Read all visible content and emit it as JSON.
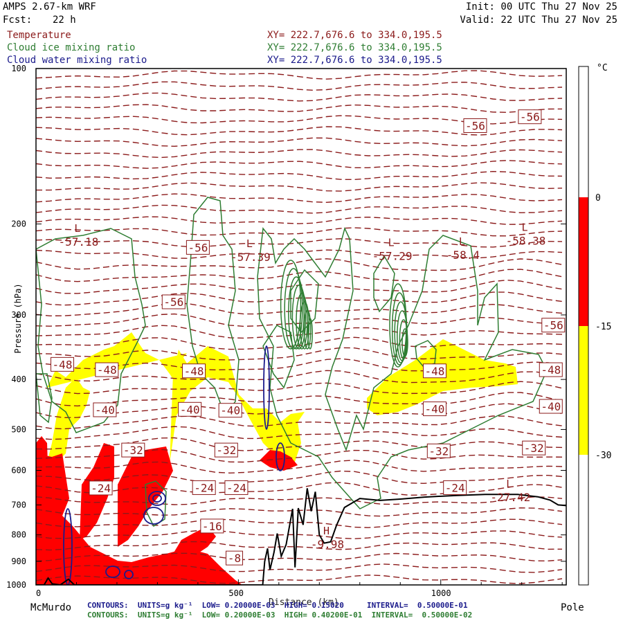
{
  "header": {
    "model": "AMPS 2.67-km WRF",
    "init": "Init: 00 UTC Thu 27 Nov 25",
    "fcst_label": "Fcst:",
    "fcst_value": "22 h",
    "valid": "Valid: 22 UTC Thu 27 Nov 25"
  },
  "fields": [
    {
      "name": "Temperature",
      "xy": "XY= 222.7,676.6 to 334.0,195.5",
      "color": "#8b1a1a"
    },
    {
      "name": "Cloud ice mixing ratio",
      "xy": "XY= 222.7,676.6 to 334.0,195.5",
      "color": "#2e7d32"
    },
    {
      "name": "Cloud water mixing ratio",
      "xy": "XY= 222.7,676.6 to 334.0,195.5",
      "color": "#1a1a8b"
    }
  ],
  "axes": {
    "ylabel": "Pressure (hPa)",
    "xlabel": "Distance (km)",
    "left_end": "McMurdo",
    "right_end": "Pole"
  },
  "colorbar": {
    "unit": "°C",
    "ticks": [
      "0",
      "-15",
      "-30"
    ],
    "colors": {
      "warm": "#ffffff",
      "red": "#ff0000",
      "yellow": "#ffff00",
      "cold": "#ffffff"
    }
  },
  "contour_info": {
    "water": "CONTOURS:  UNITS=g kg⁻¹  LOW= 0.20000E-03  HIGH= 0.15020     INTERVAL=  0.50000E-01",
    "ice": "CONTOURS:  UNITS=g kg⁻¹  LOW= 0.20000E-03  HIGH= 0.40200E-01  INTERVAL=  0.50000E-02"
  },
  "chart_data": {
    "type": "cross-section",
    "xlabel": "Distance (km)",
    "ylabel": "Pressure (hPa)",
    "xlim": [
      0,
      1310
    ],
    "ylim": [
      1000,
      100
    ],
    "y_scale": "log",
    "x_ticks": [
      0,
      500,
      1000
    ],
    "y_ticks": [
      100,
      200,
      300,
      400,
      500,
      600,
      700,
      800,
      900,
      1000
    ],
    "temperature_labels": [
      {
        "text": "-56",
        "x": 1085,
        "p": 129
      },
      {
        "text": "-56",
        "x": 1220,
        "p": 124
      },
      {
        "text": "-56",
        "x": 400,
        "p": 222
      },
      {
        "text": "-56",
        "x": 340,
        "p": 283
      },
      {
        "text": "-56",
        "x": 1278,
        "p": 314
      },
      {
        "text": "-48",
        "x": 65,
        "p": 374
      },
      {
        "text": "-48",
        "x": 175,
        "p": 383
      },
      {
        "text": "-48",
        "x": 390,
        "p": 385
      },
      {
        "text": "-48",
        "x": 985,
        "p": 385
      },
      {
        "text": "-48",
        "x": 1272,
        "p": 383
      },
      {
        "text": "-40",
        "x": 170,
        "p": 458
      },
      {
        "text": "-40",
        "x": 380,
        "p": 457
      },
      {
        "text": "-40",
        "x": 480,
        "p": 459
      },
      {
        "text": "-40",
        "x": 985,
        "p": 456
      },
      {
        "text": "-40",
        "x": 1272,
        "p": 451
      },
      {
        "text": "-32",
        "x": 240,
        "p": 548
      },
      {
        "text": "-32",
        "x": 470,
        "p": 548
      },
      {
        "text": "-32",
        "x": 995,
        "p": 550
      },
      {
        "text": "-32",
        "x": 1230,
        "p": 543
      },
      {
        "text": "-24",
        "x": 160,
        "p": 649
      },
      {
        "text": "-24",
        "x": 415,
        "p": 648
      },
      {
        "text": "-24",
        "x": 495,
        "p": 648
      },
      {
        "text": "-24",
        "x": 1035,
        "p": 648
      },
      {
        "text": "-16",
        "x": 435,
        "p": 769
      },
      {
        "text": "-8",
        "x": 490,
        "p": 887
      }
    ],
    "extrema": [
      {
        "kind": "L",
        "value": "-57.18",
        "x": 105,
        "p": 215
      },
      {
        "kind": "L",
        "value": "-57.39",
        "x": 530,
        "p": 230
      },
      {
        "kind": "L",
        "value": "-57.29",
        "x": 880,
        "p": 229
      },
      {
        "kind": "L",
        "value": "-58.4",
        "x": 1055,
        "p": 228
      },
      {
        "kind": "L",
        "value": "-58.38",
        "x": 1210,
        "p": 214
      },
      {
        "kind": "L",
        "value": "-27.42",
        "x": 1172,
        "p": 672
      },
      {
        "kind": "H",
        "value": "-9.98",
        "x": 720,
        "p": 829
      }
    ],
    "terrain": [
      [
        0,
        1000
      ],
      [
        20,
        1000
      ],
      [
        30,
        970
      ],
      [
        40,
        995
      ],
      [
        60,
        1000
      ],
      [
        80,
        975
      ],
      [
        95,
        1000
      ],
      [
        110,
        1000
      ],
      [
        300,
        1000
      ],
      [
        560,
        1000
      ],
      [
        565,
        900
      ],
      [
        572,
        850
      ],
      [
        578,
        935
      ],
      [
        588,
        865
      ],
      [
        596,
        795
      ],
      [
        606,
        880
      ],
      [
        618,
        835
      ],
      [
        634,
        712
      ],
      [
        640,
        925
      ],
      [
        648,
        710
      ],
      [
        660,
        765
      ],
      [
        670,
        650
      ],
      [
        680,
        720
      ],
      [
        690,
        660
      ],
      [
        700,
        800
      ],
      [
        712,
        830
      ],
      [
        728,
        825
      ],
      [
        742,
        768
      ],
      [
        762,
        708
      ],
      [
        800,
        680
      ],
      [
        850,
        686
      ],
      [
        900,
        682
      ],
      [
        960,
        676
      ],
      [
        1040,
        671
      ],
      [
        1110,
        668
      ],
      [
        1190,
        668
      ],
      [
        1240,
        675
      ],
      [
        1270,
        685
      ],
      [
        1290,
        700
      ],
      [
        1310,
        702
      ]
    ],
    "temperature_shading": [
      {
        "range": "0 to -15",
        "color": "#ff0000",
        "note": "lower troposphere, McMurdo side"
      },
      {
        "range": "-15 to -30",
        "color": "#ffff00",
        "note": "mid levels over both sides"
      }
    ],
    "series": [
      {
        "name": "Temperature",
        "units": "°C",
        "style": "dashed"
      },
      {
        "name": "Cloud ice mixing ratio",
        "units": "g kg⁻¹",
        "low": 0.0002,
        "high": 0.0402,
        "interval": 0.005
      },
      {
        "name": "Cloud water mixing ratio",
        "units": "g kg⁻¹",
        "low": 0.0002,
        "high": 0.1502,
        "interval": 0.05
      }
    ]
  }
}
